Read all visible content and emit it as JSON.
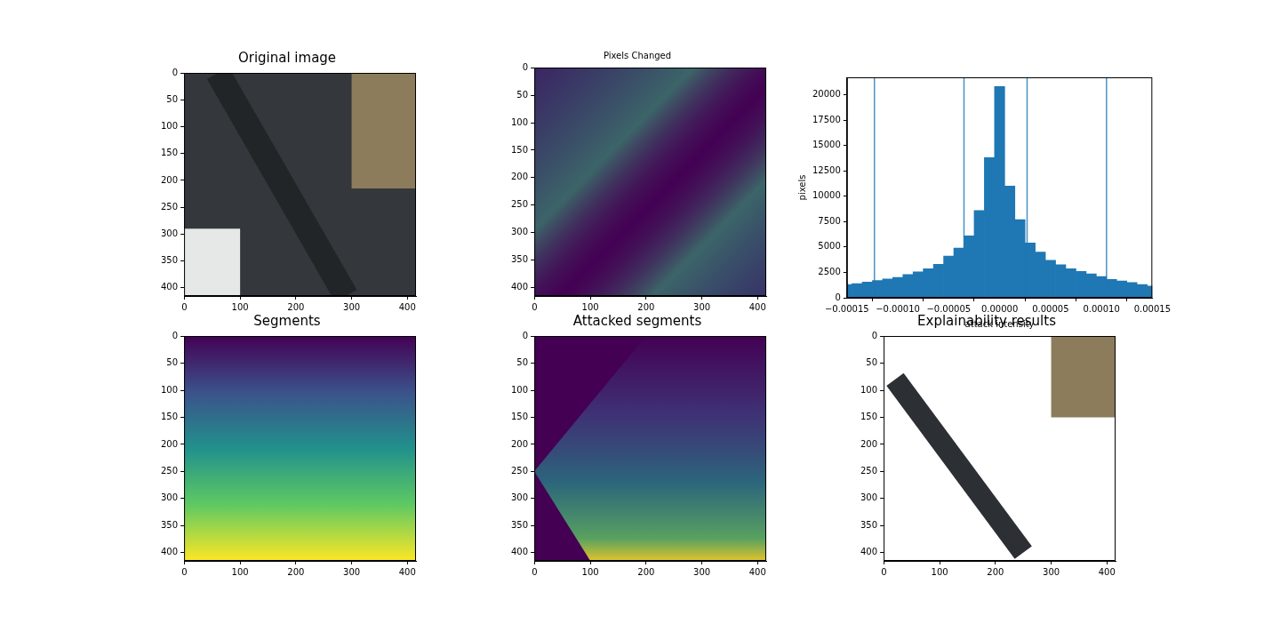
{
  "chart_data": [
    {
      "type": "image",
      "title": "Original image",
      "xlim": [
        -0.5,
        415.5
      ],
      "ylim": [
        415.5,
        -0.5
      ],
      "xticks": [
        0,
        100,
        200,
        300,
        400
      ],
      "yticks": [
        0,
        50,
        100,
        150,
        200,
        250,
        300,
        350,
        400
      ],
      "grid": false
    },
    {
      "type": "image",
      "title": "Pixels Changed",
      "xlim": [
        -0.5,
        415.5
      ],
      "ylim": [
        415.5,
        -0.5
      ],
      "xticks": [
        0,
        100,
        200,
        300,
        400
      ],
      "yticks": [
        0,
        50,
        100,
        150,
        200,
        250,
        300,
        350,
        400
      ],
      "grid": false
    },
    {
      "type": "histogram",
      "x_label": "attack intensity",
      "y_label": "pixels",
      "color": "#1f77b4",
      "bins": [
        -0.000155,
        -0.000145,
        -0.000135,
        -0.000125,
        -0.000115,
        -0.000105,
        -9.5e-05,
        -8.5e-05,
        -7.5e-05,
        -6.5e-05,
        -5.5e-05,
        -4.5e-05,
        -3.5e-05,
        -2.5e-05,
        -1.5e-05,
        -5e-06,
        5e-06,
        1.5e-05,
        2.5e-05,
        3.5e-05,
        4.5e-05,
        5.5e-05,
        6.5e-05,
        7.5e-05,
        8.5e-05,
        9.5e-05,
        0.000105,
        0.000115,
        0.000125,
        0.000135,
        0.000145,
        0.000155
      ],
      "counts": [
        1300,
        1400,
        1550,
        1700,
        1850,
        2000,
        2300,
        2550,
        2850,
        3300,
        4100,
        4900,
        6100,
        8600,
        13800,
        20800,
        11000,
        7700,
        5400,
        4500,
        3700,
        3250,
        2850,
        2600,
        2350,
        2100,
        1800,
        1650,
        1500,
        1300,
        1150
      ],
      "vlines": [
        -0.000123,
        -3.5e-05,
        2.7e-05,
        0.000105
      ],
      "xlim": [
        -0.00015,
        0.00015
      ],
      "ylim": [
        0,
        21700
      ],
      "xticks": [
        {
          "value": -0.00015,
          "label": "−0.00015"
        },
        {
          "value": -0.0001,
          "label": "−0.00010"
        },
        {
          "value": -5e-05,
          "label": "−0.00005"
        },
        {
          "value": 0,
          "label": "0.00000"
        },
        {
          "value": 5e-05,
          "label": "0.00005"
        },
        {
          "value": 0.0001,
          "label": "0.00010"
        },
        {
          "value": 0.00015,
          "label": "0.00015"
        }
      ],
      "yticks": [
        0,
        2500,
        5000,
        7500,
        10000,
        12500,
        15000,
        17500,
        20000
      ],
      "grid": false
    },
    {
      "type": "image",
      "title": "Segments",
      "xlim": [
        -0.5,
        415.5
      ],
      "ylim": [
        415.5,
        -0.5
      ],
      "xticks": [
        0,
        100,
        200,
        300,
        400
      ],
      "yticks": [
        0,
        50,
        100,
        150,
        200,
        250,
        300,
        350,
        400
      ],
      "grid": false
    },
    {
      "type": "image",
      "title": "Attacked segments",
      "xlim": [
        -0.5,
        415.5
      ],
      "ylim": [
        415.5,
        -0.5
      ],
      "xticks": [
        0,
        100,
        200,
        300,
        400
      ],
      "yticks": [
        0,
        50,
        100,
        150,
        200,
        250,
        300,
        350,
        400
      ],
      "grid": false
    },
    {
      "type": "image",
      "title": "Explainability results",
      "xlim": [
        -0.5,
        415.5
      ],
      "ylim": [
        415.5,
        -0.5
      ],
      "xticks": [
        0,
        100,
        200,
        300,
        400
      ],
      "yticks": [
        0,
        50,
        100,
        150,
        200,
        250,
        300,
        350,
        400
      ],
      "grid": false
    }
  ]
}
